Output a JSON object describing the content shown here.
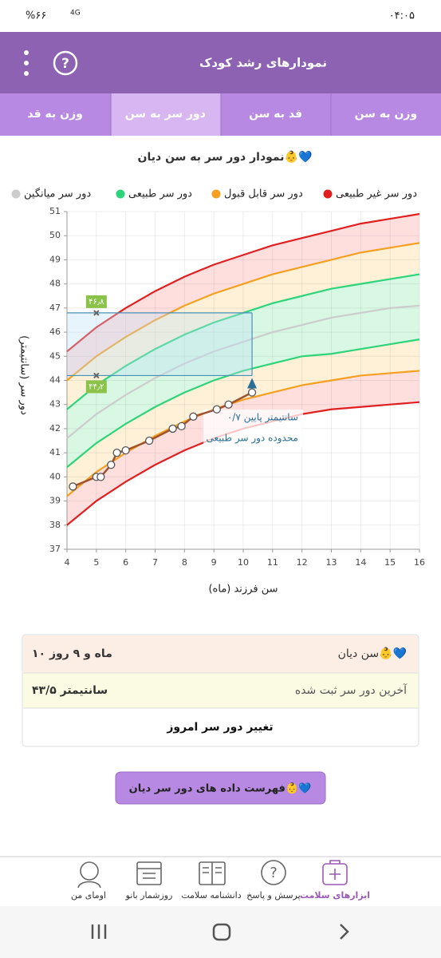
{
  "status_bar": {
    "time": "۰۴:۰۵",
    "battery": "%۶۶",
    "network": "4G"
  },
  "header": {
    "title": "نمودارهای رشد کودک",
    "help": "?"
  },
  "tabs": [
    "وزن به قد",
    "دور سر به سن",
    "قد به سن",
    "وزن به سن"
  ],
  "chart_data": {
    "type": "line",
    "title": "نمودار دور سر به سن دیان👶💙",
    "x_label": "سن فرزند (ماه)",
    "y_label": "دور سر (سانتیمتر)",
    "x": [
      4,
      5,
      6,
      7,
      8,
      9,
      10,
      11,
      12,
      13,
      14,
      15,
      16
    ],
    "xlim": [
      4,
      16
    ],
    "xticks": [
      4,
      5,
      6,
      7,
      8,
      9,
      10,
      11,
      12,
      13,
      14,
      15,
      16
    ],
    "ylim": [
      37,
      51
    ],
    "yticks": [
      37,
      38,
      39,
      40,
      41,
      42,
      43,
      44,
      45,
      46,
      47,
      48,
      49,
      50,
      51
    ],
    "grid": true,
    "series": [
      {
        "name": "دور سر غیر طبیعی",
        "color": "#e02020",
        "values": [
          45.2,
          46.2,
          47.0,
          47.7,
          48.3,
          48.8,
          49.2,
          49.6,
          49.9,
          50.2,
          50.5,
          50.7,
          50.9
        ]
      },
      {
        "name": "دور سر قابل قبول",
        "color": "#f5a020",
        "values": [
          44.0,
          45.0,
          45.8,
          46.5,
          47.1,
          47.6,
          48.0,
          48.4,
          48.7,
          49.0,
          49.3,
          49.5,
          49.7
        ]
      },
      {
        "name": "دور سر طبیعی",
        "color": "#2ed47a",
        "values": [
          42.8,
          43.8,
          44.6,
          45.3,
          45.9,
          46.4,
          46.8,
          47.2,
          47.5,
          47.8,
          48.0,
          48.2,
          48.4
        ]
      },
      {
        "name": "دور سر میانگین",
        "color": "#cccccc",
        "values": [
          41.6,
          42.6,
          43.4,
          44.1,
          44.7,
          45.2,
          45.6,
          46.0,
          46.3,
          46.6,
          46.8,
          47.0,
          47.1
        ]
      },
      {
        "name": "دور سر طبیعی",
        "color": "#2ed47a",
        "values": [
          40.4,
          41.4,
          42.2,
          42.9,
          43.5,
          44.0,
          44.4,
          44.7,
          45.0,
          45.1,
          45.3,
          45.5,
          45.7
        ]
      },
      {
        "name": "دور سر قابل قبول",
        "color": "#f5a020",
        "values": [
          39.2,
          40.2,
          41.0,
          41.7,
          42.3,
          42.8,
          43.2,
          43.5,
          43.8,
          44.0,
          44.2,
          44.3,
          44.4
        ]
      },
      {
        "name": "دور سر غیر طبیعی",
        "color": "#e02020",
        "values": [
          38.0,
          39.0,
          39.8,
          40.5,
          41.1,
          41.6,
          42.0,
          42.3,
          42.6,
          42.8,
          42.9,
          43.0,
          43.1
        ]
      }
    ],
    "child": {
      "color": "#a0522d",
      "x": [
        4.2,
        5,
        5.15,
        5.5,
        5.7,
        6,
        6.8,
        7.6,
        7.9,
        8.3,
        9.1,
        9.5,
        10.3
      ],
      "values": [
        39.6,
        40,
        40,
        40.5,
        41,
        41.1,
        41.5,
        42,
        42.1,
        42.5,
        42.8,
        43,
        43.5
      ]
    },
    "ref_marker_x": 5,
    "ref_lines": [
      {
        "value": 46.8,
        "label": "۴۶٫۸"
      },
      {
        "value": 44.2,
        "label": "۴۴٫۲"
      }
    ],
    "note": [
      "۰/۷ سانتیمتر پایین",
      "محدوده دور سر طبیعی"
    ]
  },
  "card": {
    "rows": [
      [
        "سن دیان👶💙",
        "۱۰ ماه و ۹ روز"
      ],
      [
        "آخرین دور سر ثبت شده",
        "۴۳/۵ سانتیمتر"
      ]
    ],
    "action": "تغییر دور سر امروز"
  },
  "button": "فهرست داده های دور سر دیان👶💙",
  "nav": [
    "ابزارهای سلامت",
    "پرسش و پاسخ",
    "دانشنامه سلامت",
    "روزشمار بانو",
    "اومای من"
  ]
}
